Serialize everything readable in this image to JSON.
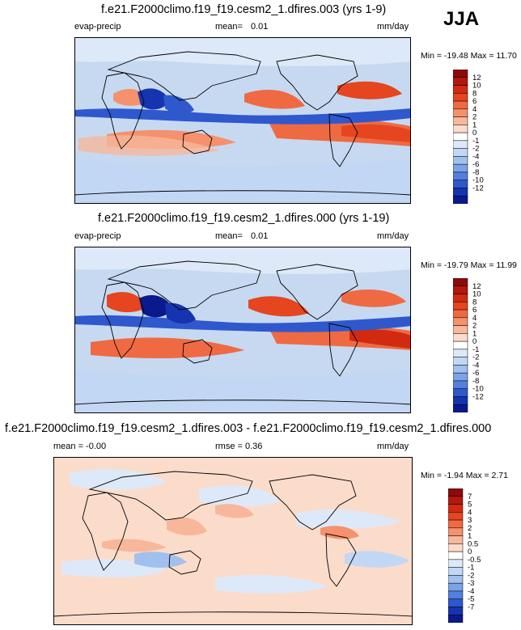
{
  "season": "JJA",
  "units": "mm/day",
  "panels": [
    {
      "title": "f.e21.F2000climo.f19_f19.cesm2_1.dfires.003 (yrs 1-9)",
      "variable": "evap-precip",
      "stat_label": "mean=",
      "stat_value": "0.01",
      "minmax": "Min = -19.48 Max = 11.70"
    },
    {
      "title": "f.e21.F2000climo.f19_f19.cesm2_1.dfires.000 (yrs 1-19)",
      "variable": "evap-precip",
      "stat_label": "mean=",
      "stat_value": "0.01",
      "minmax": "Min = -19.79 Max = 11.99"
    },
    {
      "title": "f.e21.F2000climo.f19_f19.cesm2_1.dfires.003 - f.e21.F2000climo.f19_f19.cesm2_1.dfires.000",
      "mean_text": "mean = -0.00",
      "rmse_text": "rmse = 0.36",
      "minmax": "Min = -1.94 Max = 2.71"
    }
  ],
  "chart_data": [
    {
      "type": "heatmap",
      "title": "f.e21.F2000climo.f19_f19.cesm2_1.dfires.003 (yrs 1-9)",
      "field": "evap-precip",
      "units": "mm/day",
      "mean": 0.01,
      "min": -19.48,
      "max": 11.7,
      "colorbar_levels": [
        "12",
        "10",
        "8",
        "6",
        "4",
        "2",
        "1",
        "0",
        "-1",
        "-2",
        "-4",
        "-6",
        "-8",
        "-10",
        "-12"
      ],
      "colors": [
        "#8c0a0a",
        "#b2180d",
        "#d22a10",
        "#e5451f",
        "#ef6a43",
        "#f5916c",
        "#f8b79b",
        "#fbdccb",
        "#ffffff",
        "#dde9f8",
        "#c2d7f3",
        "#a1c0ee",
        "#7ba3e6",
        "#557fde",
        "#2f58cd",
        "#1634b0",
        "#0a1a8c"
      ]
    },
    {
      "type": "heatmap",
      "title": "f.e21.F2000climo.f19_f19.cesm2_1.dfires.000 (yrs 1-19)",
      "field": "evap-precip",
      "units": "mm/day",
      "mean": 0.01,
      "min": -19.79,
      "max": 11.99,
      "colorbar_levels": [
        "12",
        "10",
        "8",
        "6",
        "4",
        "2",
        "1",
        "0",
        "-1",
        "-2",
        "-4",
        "-6",
        "-8",
        "-10",
        "-12"
      ],
      "colors": [
        "#8c0a0a",
        "#b2180d",
        "#d22a10",
        "#e5451f",
        "#ef6a43",
        "#f5916c",
        "#f8b79b",
        "#fbdccb",
        "#ffffff",
        "#dde9f8",
        "#c2d7f3",
        "#a1c0ee",
        "#7ba3e6",
        "#557fde",
        "#2f58cd",
        "#1634b0",
        "#0a1a8c"
      ]
    },
    {
      "type": "heatmap",
      "title": "f.e21.F2000climo.f19_f19.cesm2_1.dfires.003 - f.e21.F2000climo.f19_f19.cesm2_1.dfires.000",
      "field": "difference",
      "units": "mm/day",
      "mean": -0.0,
      "rmse": 0.36,
      "min": -1.94,
      "max": 2.71,
      "colorbar_levels": [
        "7",
        "5",
        "4",
        "3",
        "2",
        "1",
        "0.5",
        "0",
        "-0.5",
        "-1",
        "-2",
        "-3",
        "-4",
        "-5",
        "-7"
      ],
      "colors": [
        "#8c0a0a",
        "#b2180d",
        "#d22a10",
        "#e5451f",
        "#ef6a43",
        "#f5916c",
        "#f8b79b",
        "#fbdccb",
        "#ffffff",
        "#dde9f8",
        "#c2d7f3",
        "#a1c0ee",
        "#7ba3e6",
        "#557fde",
        "#2f58cd",
        "#1634b0",
        "#0a1a8c"
      ]
    }
  ]
}
